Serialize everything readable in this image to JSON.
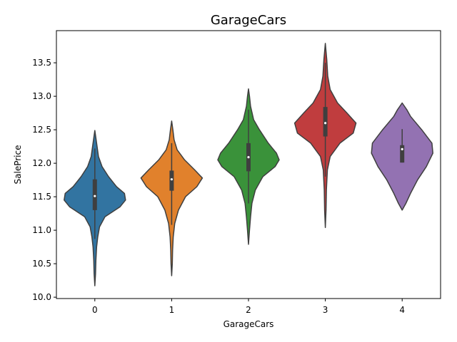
{
  "chart_data": {
    "type": "violin",
    "title": "GarageCars",
    "xlabel": "GarageCars",
    "ylabel": "SalePrice",
    "ylim": [
      9.98,
      13.98
    ],
    "yticks": [
      10.0,
      10.5,
      11.0,
      11.5,
      12.0,
      12.5,
      13.0,
      13.5
    ],
    "ytick_labels": [
      "10.0",
      "10.5",
      "11.0",
      "11.5",
      "12.0",
      "12.5",
      "13.0",
      "13.5"
    ],
    "categories": [
      "0",
      "1",
      "2",
      "3",
      "4"
    ],
    "grid": false,
    "legend": "none",
    "series": [
      {
        "category": "0",
        "color": "#3274a1",
        "min": 10.17,
        "q1": 11.3,
        "median": 11.51,
        "q3": 11.76,
        "max": 12.49,
        "whisker_low": 10.87,
        "whisker_high": 12.22,
        "density": [
          [
            10.17,
            0.0
          ],
          [
            10.35,
            0.02
          ],
          [
            10.55,
            0.03
          ],
          [
            10.75,
            0.05
          ],
          [
            10.9,
            0.08
          ],
          [
            11.05,
            0.13
          ],
          [
            11.2,
            0.28
          ],
          [
            11.35,
            0.7
          ],
          [
            11.45,
            0.85
          ],
          [
            11.55,
            0.82
          ],
          [
            11.65,
            0.6
          ],
          [
            11.8,
            0.38
          ],
          [
            11.95,
            0.2
          ],
          [
            12.1,
            0.1
          ],
          [
            12.3,
            0.05
          ],
          [
            12.49,
            0.0
          ]
        ]
      },
      {
        "category": "1",
        "color": "#e1812c",
        "min": 10.32,
        "q1": 11.59,
        "median": 11.76,
        "q3": 11.89,
        "max": 12.63,
        "whisker_low": 11.08,
        "whisker_high": 12.3,
        "density": [
          [
            10.32,
            0.0
          ],
          [
            10.5,
            0.02
          ],
          [
            10.7,
            0.03
          ],
          [
            10.9,
            0.05
          ],
          [
            11.1,
            0.1
          ],
          [
            11.3,
            0.22
          ],
          [
            11.5,
            0.45
          ],
          [
            11.65,
            0.82
          ],
          [
            11.78,
            1.0
          ],
          [
            11.9,
            0.75
          ],
          [
            12.05,
            0.42
          ],
          [
            12.2,
            0.18
          ],
          [
            12.35,
            0.08
          ],
          [
            12.5,
            0.04
          ],
          [
            12.63,
            0.0
          ]
        ]
      },
      {
        "category": "2",
        "color": "#3a923a",
        "min": 10.79,
        "q1": 11.88,
        "median": 12.09,
        "q3": 12.3,
        "max": 13.11,
        "whisker_low": 11.4,
        "whisker_high": 12.8,
        "density": [
          [
            10.79,
            0.0
          ],
          [
            11.0,
            0.03
          ],
          [
            11.2,
            0.06
          ],
          [
            11.4,
            0.1
          ],
          [
            11.6,
            0.2
          ],
          [
            11.8,
            0.42
          ],
          [
            11.95,
            0.78
          ],
          [
            12.05,
            0.9
          ],
          [
            12.15,
            0.82
          ],
          [
            12.3,
            0.58
          ],
          [
            12.5,
            0.32
          ],
          [
            12.65,
            0.15
          ],
          [
            12.85,
            0.06
          ],
          [
            13.0,
            0.03
          ],
          [
            13.11,
            0.0
          ]
        ]
      },
      {
        "category": "3",
        "color": "#c03d3e",
        "min": 11.04,
        "q1": 12.4,
        "median": 12.6,
        "q3": 12.84,
        "max": 13.79,
        "whisker_low": 11.8,
        "whisker_high": 13.5,
        "density": [
          [
            11.04,
            0.0
          ],
          [
            11.3,
            0.02
          ],
          [
            11.6,
            0.03
          ],
          [
            11.9,
            0.06
          ],
          [
            12.1,
            0.14
          ],
          [
            12.3,
            0.42
          ],
          [
            12.45,
            0.8
          ],
          [
            12.6,
            0.88
          ],
          [
            12.75,
            0.62
          ],
          [
            12.9,
            0.35
          ],
          [
            13.1,
            0.14
          ],
          [
            13.3,
            0.07
          ],
          [
            13.55,
            0.04
          ],
          [
            13.79,
            0.0
          ]
        ]
      },
      {
        "category": "4",
        "color": "#9372b2",
        "min": 11.3,
        "q1": 12.01,
        "median": 12.21,
        "q3": 12.27,
        "max": 12.9,
        "whisker_low": 12.01,
        "whisker_high": 12.51,
        "density": [
          [
            11.3,
            0.0
          ],
          [
            11.4,
            0.08
          ],
          [
            11.55,
            0.18
          ],
          [
            11.75,
            0.33
          ],
          [
            11.95,
            0.52
          ],
          [
            12.15,
            0.66
          ],
          [
            12.3,
            0.64
          ],
          [
            12.5,
            0.42
          ],
          [
            12.7,
            0.18
          ],
          [
            12.8,
            0.1
          ],
          [
            12.9,
            0.0
          ]
        ]
      }
    ]
  }
}
